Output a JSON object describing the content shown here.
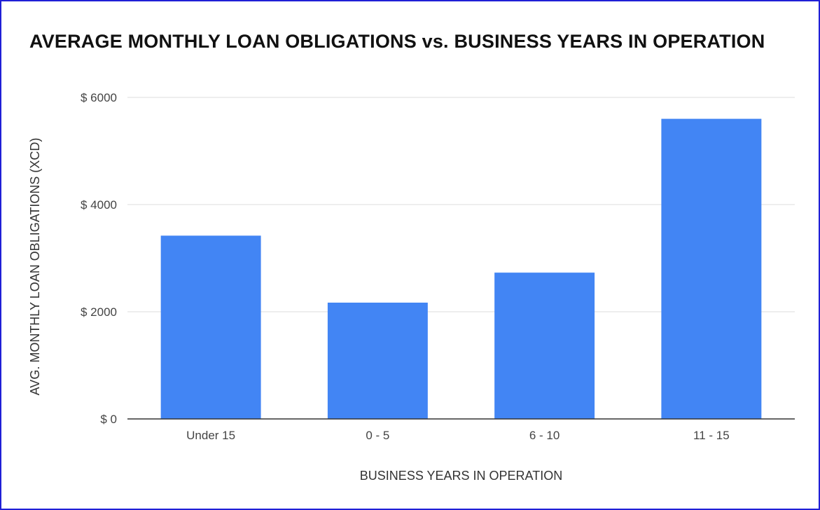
{
  "chart_data": {
    "type": "bar",
    "title": "AVERAGE MONTHLY LOAN OBLIGATIONS vs. BUSINESS YEARS IN OPERATION",
    "xlabel": "BUSINESS YEARS IN OPERATION",
    "ylabel": "AVG. MONTHLY LOAN OBLIGATIONS (XCD)",
    "categories": [
      "Under 15",
      "0 - 5",
      "6 - 10",
      "11 - 15"
    ],
    "values": [
      3420,
      2170,
      2730,
      5600
    ],
    "ylim": [
      0,
      6000
    ],
    "yticks": [
      {
        "value": 0,
        "label": "$ 0"
      },
      {
        "value": 2000,
        "label": "$ 2000"
      },
      {
        "value": 4000,
        "label": "$ 4000"
      },
      {
        "value": 6000,
        "label": "$ 6000"
      }
    ],
    "grid": true,
    "legend": "none",
    "bar_color": "#4285f4",
    "gridline_color": "#dddddd",
    "frame_color": "#1f1fd6"
  }
}
